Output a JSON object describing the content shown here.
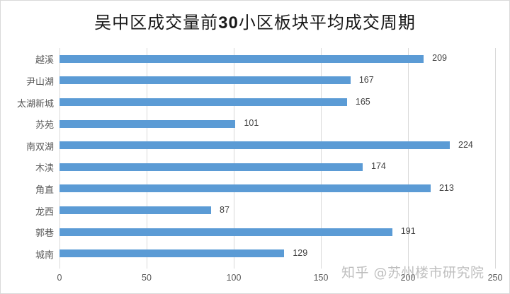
{
  "chart_data": {
    "type": "bar",
    "orientation": "horizontal",
    "title": "吴中区成交量前30小区板块平均成交周期",
    "xlabel": "",
    "ylabel": "",
    "categories": [
      "越溪",
      "尹山湖",
      "太湖新城",
      "苏苑",
      "南双湖",
      "木渎",
      "角直",
      "龙西",
      "郭巷",
      "城南"
    ],
    "values": [
      209,
      167,
      165,
      101,
      224,
      174,
      213,
      87,
      191,
      129
    ],
    "xlim": [
      0,
      250
    ],
    "xticks": [
      0,
      50,
      100,
      150,
      200,
      250
    ],
    "grid": "vertical",
    "legend": null,
    "data_labels": true,
    "bar_color": "#5b9bd5"
  },
  "title_parts": {
    "pre": "吴中区成交量前",
    "num": "30",
    "post": "小区板块平均成交周期"
  },
  "xtick_labels": [
    "0",
    "50",
    "100",
    "150",
    "200",
    "250"
  ],
  "watermark": "知乎 @苏州楼市研究院"
}
